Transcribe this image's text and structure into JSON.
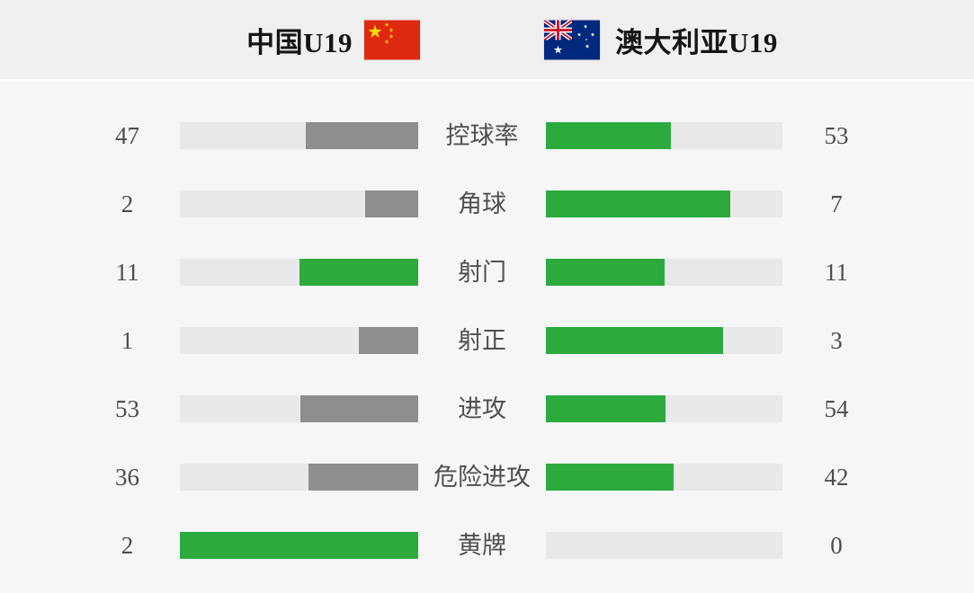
{
  "header": {
    "home_team": "中国U19",
    "away_team": "澳大利亚U19"
  },
  "icons": {
    "home_flag": "china-flag",
    "away_flag": "australia-flag"
  },
  "colors": {
    "green": "#2caa3e",
    "gray_fill": "#8e8e8e",
    "track": "#e9e9e9",
    "page_bg": "#f6f6f7",
    "header_bg": "#f0f0f1",
    "label_text": "#4f4f4f",
    "value_text": "#4d4d4d",
    "header_text": "#151515",
    "china_flag_red": "#de2910",
    "china_flag_yellow": "#ffde00",
    "australia_flag_blue": "#00287d",
    "australia_flag_red": "#cf142b"
  },
  "chart_data": {
    "type": "bar",
    "orientation": "horizontal-mirrored",
    "categories": [
      "控球率",
      "角球",
      "射门",
      "射正",
      "进攻",
      "危险进攻",
      "黄牌"
    ],
    "series": [
      {
        "name": "中国U19",
        "values": [
          47,
          2,
          11,
          1,
          53,
          36,
          2
        ]
      },
      {
        "name": "澳大利亚U19",
        "values": [
          53,
          7,
          11,
          3,
          54,
          42,
          0
        ]
      }
    ],
    "layout_hints": {
      "fill_rule": "fill width = value / (home + away)",
      "home_fill_color_rule": "green when home >= away, otherwise gray; away fill always green",
      "grid": "off",
      "legend_position": "top header with flags"
    }
  }
}
